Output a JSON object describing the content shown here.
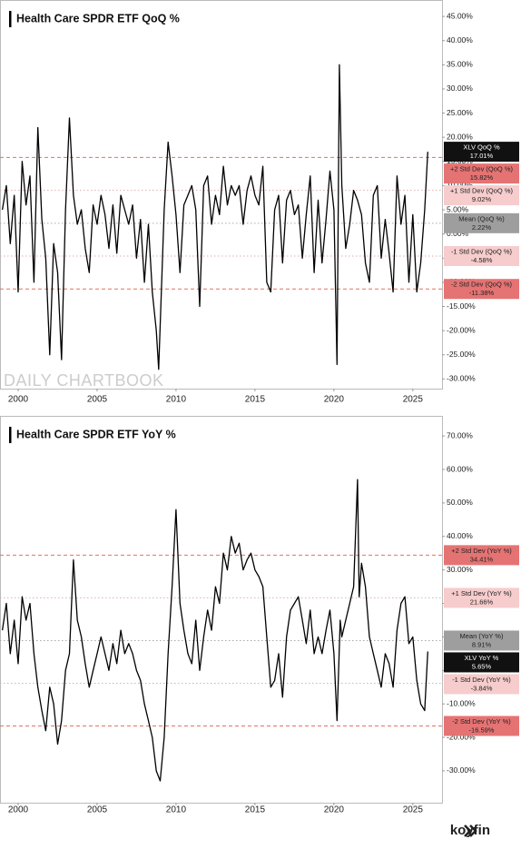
{
  "chart_data": [
    {
      "type": "line",
      "title": "Health Care SPDR ETF  QoQ %",
      "watermark": "DAILY CHARTBOOK",
      "x": [
        1999.0,
        1999.25,
        1999.5,
        1999.75,
        2000.0,
        2000.25,
        2000.5,
        2000.75,
        2001.0,
        2001.25,
        2001.5,
        2001.75,
        2002.0,
        2002.25,
        2002.5,
        2002.75,
        2003.0,
        2003.25,
        2003.5,
        2003.75,
        2004.0,
        2004.25,
        2004.5,
        2004.75,
        2005.0,
        2005.25,
        2005.5,
        2005.75,
        2006.0,
        2006.25,
        2006.5,
        2006.75,
        2007.0,
        2007.25,
        2007.5,
        2007.75,
        2008.0,
        2008.25,
        2008.5,
        2008.75,
        2008.9,
        2009.25,
        2009.5,
        2009.75,
        2010.0,
        2010.25,
        2010.5,
        2010.75,
        2011.0,
        2011.25,
        2011.5,
        2011.75,
        2012.0,
        2012.25,
        2012.5,
        2012.75,
        2013.0,
        2013.25,
        2013.5,
        2013.75,
        2014.0,
        2014.25,
        2014.5,
        2014.75,
        2015.0,
        2015.25,
        2015.5,
        2015.75,
        2016.0,
        2016.25,
        2016.5,
        2016.75,
        2017.0,
        2017.25,
        2017.5,
        2017.75,
        2018.0,
        2018.25,
        2018.5,
        2018.75,
        2019.0,
        2019.25,
        2019.5,
        2019.75,
        2020.0,
        2020.2,
        2020.35,
        2020.5,
        2020.75,
        2021.0,
        2021.25,
        2021.5,
        2021.75,
        2022.0,
        2022.25,
        2022.5,
        2022.75,
        2023.0,
        2023.25,
        2023.5,
        2023.75,
        2024.0,
        2024.25,
        2024.5,
        2024.75,
        2025.0,
        2025.25,
        2025.5,
        2025.75,
        2025.95
      ],
      "series": [
        {
          "name": "XLV QoQ %",
          "color": "#000000",
          "values": [
            5,
            10,
            -2,
            8,
            -12,
            15,
            6,
            12,
            -10,
            22,
            3,
            -5,
            -25,
            -2,
            -8,
            -26,
            5,
            24,
            8,
            2,
            5,
            -3,
            -8,
            6,
            2,
            8,
            4,
            -3,
            6,
            -4,
            8,
            5,
            2,
            6,
            -5,
            3,
            -10,
            2,
            -12,
            -20,
            -28,
            5,
            19,
            12,
            4,
            -8,
            6,
            8,
            10,
            5,
            -15,
            10,
            12,
            2,
            8,
            4,
            14,
            6,
            10,
            8,
            10,
            2,
            9,
            12,
            8,
            6,
            14,
            -10,
            -12,
            5,
            8,
            -6,
            7,
            9,
            4,
            6,
            -5,
            4,
            12,
            -8,
            7,
            -6,
            3,
            13,
            5,
            -27,
            35,
            10,
            -3,
            2,
            9,
            7,
            4,
            -6,
            -10,
            8,
            10,
            -5,
            3,
            -4,
            -12,
            12,
            2,
            8,
            -10,
            4,
            -12,
            -6,
            5,
            17.01
          ],
          "value_labels": [
            null,
            null,
            null,
            null,
            null,
            null,
            null,
            null,
            null,
            null,
            null,
            null,
            null,
            null,
            null,
            null,
            null,
            null,
            null,
            null,
            null,
            null,
            null,
            null,
            null,
            null,
            null,
            null,
            null,
            null,
            null,
            null,
            null,
            null,
            null,
            null,
            null,
            null,
            null,
            null,
            null,
            null,
            null,
            null,
            null,
            null,
            null,
            null,
            null,
            null,
            null,
            null,
            null,
            null,
            null,
            null,
            null,
            null,
            null,
            null,
            null,
            null,
            null,
            null,
            null,
            null,
            null,
            null,
            null,
            null,
            null,
            null,
            null,
            null,
            null,
            null,
            null,
            null,
            null,
            null,
            null,
            null,
            null,
            null,
            null,
            null,
            null,
            null,
            null,
            null,
            null,
            null,
            null,
            null,
            null,
            null,
            null,
            null,
            null,
            null,
            null,
            null,
            null,
            null,
            null,
            null,
            null,
            null,
            null,
            "17.01%"
          ]
        }
      ],
      "reference_lines": [
        {
          "name": "+2 Std Dev (QoQ %)",
          "value": 15.82,
          "label": "15.82%",
          "color": "#e8705f",
          "style": "dashed",
          "box": "#e57373"
        },
        {
          "name": "+1 Std Dev (QoQ %)",
          "value": 9.02,
          "label": "9.02%",
          "color": "#d9b0b0",
          "style": "dotted",
          "box": "#f6cccc"
        },
        {
          "name": "Mean (QoQ %)",
          "value": 2.22,
          "label": "2.22%",
          "color": "#aaaaaa",
          "style": "dotted",
          "box": "#9e9e9e"
        },
        {
          "name": "-1 Std Dev (QoQ %)",
          "value": -4.58,
          "label": "-4.58%",
          "color": "#d9b0b0",
          "style": "dotted",
          "box": "#f6cccc"
        },
        {
          "name": "-2 Std Dev (QoQ %)",
          "value": -11.38,
          "label": "-11.38%",
          "color": "#e8705f",
          "style": "dashed",
          "box": "#e57373"
        }
      ],
      "xlim": [
        1998.85,
        2026.85
      ],
      "xticks": [
        2000,
        2005,
        2010,
        2015,
        2020,
        2025
      ],
      "ylim": [
        -32,
        48.4
      ],
      "yticks": [
        {
          "value": -30,
          "label": "-30.00%"
        },
        {
          "value": -25,
          "label": "-25.00%"
        },
        {
          "value": -20,
          "label": "-20.00%"
        },
        {
          "value": -15,
          "label": "-15.00%"
        },
        {
          "value": -10,
          "label": "-10.00%"
        },
        {
          "value": -5,
          "label": "-5.00%"
        },
        {
          "value": 0,
          "label": "0.00%"
        },
        {
          "value": 5,
          "label": "5.00%"
        },
        {
          "value": 10,
          "label": "10.00%"
        },
        {
          "value": 15,
          "label": "15.00%"
        },
        {
          "value": 20,
          "label": "20.00%"
        },
        {
          "value": 25,
          "label": "25.00%"
        },
        {
          "value": 30,
          "label": "30.00%"
        },
        {
          "value": 35,
          "label": "35.00%"
        },
        {
          "value": 40,
          "label": "40.00%"
        },
        {
          "value": 45,
          "label": "45.00%"
        }
      ]
    },
    {
      "type": "line",
      "title": "Health Care SPDR ETF  YoY %",
      "x": [
        1999.0,
        1999.25,
        1999.5,
        1999.75,
        2000.0,
        2000.25,
        2000.5,
        2000.75,
        2001.0,
        2001.25,
        2001.5,
        2001.75,
        2002.0,
        2002.25,
        2002.5,
        2002.75,
        2003.0,
        2003.25,
        2003.5,
        2003.75,
        2004.0,
        2004.25,
        2004.5,
        2004.75,
        2005.0,
        2005.25,
        2005.5,
        2005.75,
        2006.0,
        2006.25,
        2006.5,
        2006.75,
        2007.0,
        2007.25,
        2007.5,
        2007.75,
        2008.0,
        2008.25,
        2008.5,
        2008.75,
        2009.0,
        2009.25,
        2009.5,
        2009.75,
        2010.0,
        2010.25,
        2010.5,
        2010.75,
        2011.0,
        2011.25,
        2011.5,
        2011.75,
        2012.0,
        2012.25,
        2012.5,
        2012.75,
        2013.0,
        2013.25,
        2013.5,
        2013.75,
        2014.0,
        2014.25,
        2014.5,
        2014.75,
        2015.0,
        2015.25,
        2015.5,
        2015.75,
        2016.0,
        2016.25,
        2016.5,
        2016.75,
        2017.0,
        2017.25,
        2017.5,
        2017.75,
        2018.0,
        2018.25,
        2018.5,
        2018.75,
        2019.0,
        2019.25,
        2019.5,
        2019.75,
        2020.0,
        2020.2,
        2020.4,
        2020.5,
        2020.75,
        2021.0,
        2021.25,
        2021.5,
        2021.6,
        2021.75,
        2022.0,
        2022.25,
        2022.5,
        2022.75,
        2023.0,
        2023.25,
        2023.5,
        2023.75,
        2024.0,
        2024.25,
        2024.5,
        2024.75,
        2025.0,
        2025.25,
        2025.5,
        2025.75,
        2025.95
      ],
      "series": [
        {
          "name": "XLV YoY %",
          "color": "#000000",
          "values": [
            12,
            20,
            5,
            15,
            2,
            22,
            15,
            20,
            5,
            -5,
            -12,
            -18,
            -5,
            -10,
            -22,
            -15,
            0,
            5,
            33,
            15,
            10,
            2,
            -5,
            0,
            5,
            10,
            5,
            0,
            8,
            2,
            12,
            5,
            8,
            5,
            0,
            -3,
            -10,
            -15,
            -20,
            -30,
            -33,
            -20,
            5,
            25,
            48,
            20,
            12,
            5,
            2,
            15,
            0,
            10,
            18,
            12,
            25,
            20,
            35,
            30,
            40,
            35,
            38,
            30,
            33,
            35,
            30,
            28,
            25,
            10,
            -5,
            -3,
            5,
            -8,
            10,
            18,
            20,
            22,
            15,
            8,
            18,
            5,
            10,
            5,
            12,
            18,
            5,
            -15,
            15,
            10,
            15,
            20,
            25,
            57,
            22,
            32,
            25,
            10,
            5,
            0,
            -5,
            5,
            2,
            -5,
            12,
            20,
            22,
            8,
            10,
            -3,
            -10,
            -12,
            5.65
          ],
          "value_labels": [
            null,
            null,
            null,
            null,
            null,
            null,
            null,
            null,
            null,
            null,
            null,
            null,
            null,
            null,
            null,
            null,
            null,
            null,
            null,
            null,
            null,
            null,
            null,
            null,
            null,
            null,
            null,
            null,
            null,
            null,
            null,
            null,
            null,
            null,
            null,
            null,
            null,
            null,
            null,
            null,
            null,
            null,
            null,
            null,
            null,
            null,
            null,
            null,
            null,
            null,
            null,
            null,
            null,
            null,
            null,
            null,
            null,
            null,
            null,
            null,
            null,
            null,
            null,
            null,
            null,
            null,
            null,
            null,
            null,
            null,
            null,
            null,
            null,
            null,
            null,
            null,
            null,
            null,
            null,
            null,
            null,
            null,
            null,
            null,
            null,
            null,
            null,
            null,
            null,
            null,
            null,
            null,
            null,
            null,
            null,
            null,
            null,
            null,
            null,
            null,
            null,
            null,
            null,
            null,
            null,
            null,
            null,
            null,
            null,
            null,
            "5.65%"
          ]
        }
      ],
      "reference_lines": [
        {
          "name": "+2 Std Dev (YoY %)",
          "value": 34.41,
          "label": "34.41%",
          "color": "#e8705f",
          "style": "dashed",
          "box": "#e57373"
        },
        {
          "name": "+1 Std Dev (YoY %)",
          "value": 21.66,
          "label": "21.66%",
          "color": "#d9b0b0",
          "style": "dotted",
          "box": "#f6cccc"
        },
        {
          "name": "Mean (YoY %)",
          "value": 8.91,
          "label": "8.91%",
          "color": "#aaaaaa",
          "style": "dotted",
          "box": "#9e9e9e"
        },
        {
          "name": "-1 Std Dev (YoY %)",
          "value": -3.84,
          "label": "-3.84%",
          "color": "#d9b0b0",
          "style": "dotted",
          "box": "#f6cccc"
        },
        {
          "name": "-2 Std Dev (YoY %)",
          "value": -16.59,
          "label": "-16.59%",
          "color": "#e8705f",
          "style": "dashed",
          "box": "#e57373"
        }
      ],
      "xlim": [
        1998.85,
        2026.85
      ],
      "xticks": [
        2000,
        2005,
        2010,
        2015,
        2020,
        2025
      ],
      "ylim": [
        -39.5,
        76
      ],
      "yticks": [
        {
          "value": -30,
          "label": "-30.00%"
        },
        {
          "value": -20,
          "label": "-20.00%"
        },
        {
          "value": -10,
          "label": "-10.00%"
        },
        {
          "value": 0,
          "label": "0.00%"
        },
        {
          "value": 10,
          "label": "10.00%"
        },
        {
          "value": 20,
          "label": "20.00%"
        },
        {
          "value": 30,
          "label": "30.00%"
        },
        {
          "value": 40,
          "label": "40.00%"
        },
        {
          "value": 50,
          "label": "50.00%"
        },
        {
          "value": 60,
          "label": "60.00%"
        },
        {
          "value": 70,
          "label": "70.00%"
        }
      ]
    }
  ],
  "source": "koyfin"
}
